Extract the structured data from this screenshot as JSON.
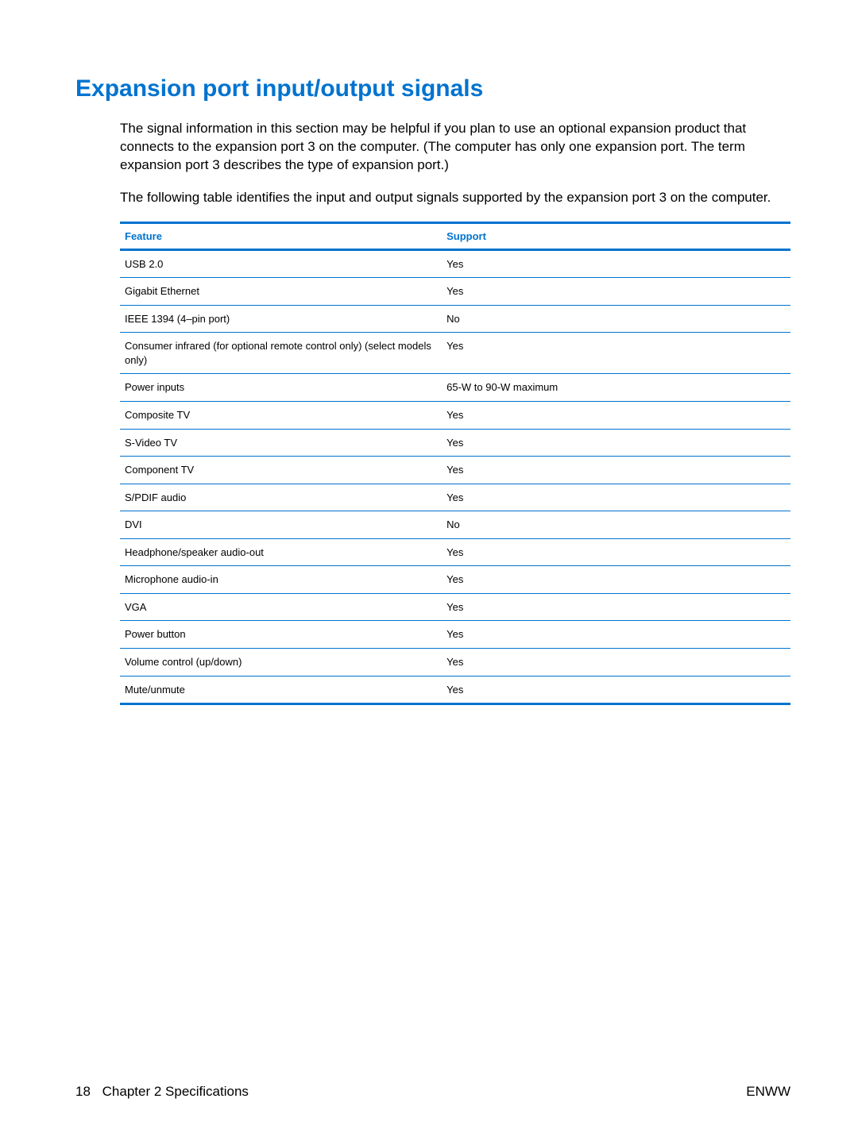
{
  "heading": "Expansion port input/output signals",
  "paragraphs": [
    "The signal information in this section may be helpful if you plan to use an optional expansion product that connects to the expansion port 3 on the computer. (The computer has only one expansion port. The term expansion port 3 describes the type of expansion port.)",
    "The following table identifies the input and output signals supported by the expansion port 3 on the computer."
  ],
  "table": {
    "columns": [
      "Feature",
      "Support"
    ],
    "header_color": "#0073cf",
    "border_color": "#0073cf",
    "header_fontsize": 13,
    "cell_fontsize": 13,
    "col_widths": [
      "48%",
      "52%"
    ],
    "rows": [
      [
        "USB 2.0",
        "Yes"
      ],
      [
        "Gigabit Ethernet",
        "Yes"
      ],
      [
        "IEEE 1394 (4–pin port)",
        "No"
      ],
      [
        "Consumer infrared (for optional remote control only) (select models only)",
        "Yes"
      ],
      [
        "Power inputs",
        "65-W to 90-W maximum"
      ],
      [
        "Composite TV",
        "Yes"
      ],
      [
        "S-Video TV",
        "Yes"
      ],
      [
        "Component TV",
        "Yes"
      ],
      [
        "S/PDIF audio",
        "Yes"
      ],
      [
        "DVI",
        "No"
      ],
      [
        "Headphone/speaker audio-out",
        "Yes"
      ],
      [
        "Microphone audio-in",
        "Yes"
      ],
      [
        "VGA",
        "Yes"
      ],
      [
        "Power button",
        "Yes"
      ],
      [
        "Volume control (up/down)",
        "Yes"
      ],
      [
        "Mute/unmute",
        "Yes"
      ]
    ]
  },
  "footer": {
    "page_number": "18",
    "chapter": "Chapter 2   Specifications",
    "right": "ENWW"
  },
  "colors": {
    "heading": "#0073cf",
    "text": "#000000",
    "background": "#ffffff"
  }
}
